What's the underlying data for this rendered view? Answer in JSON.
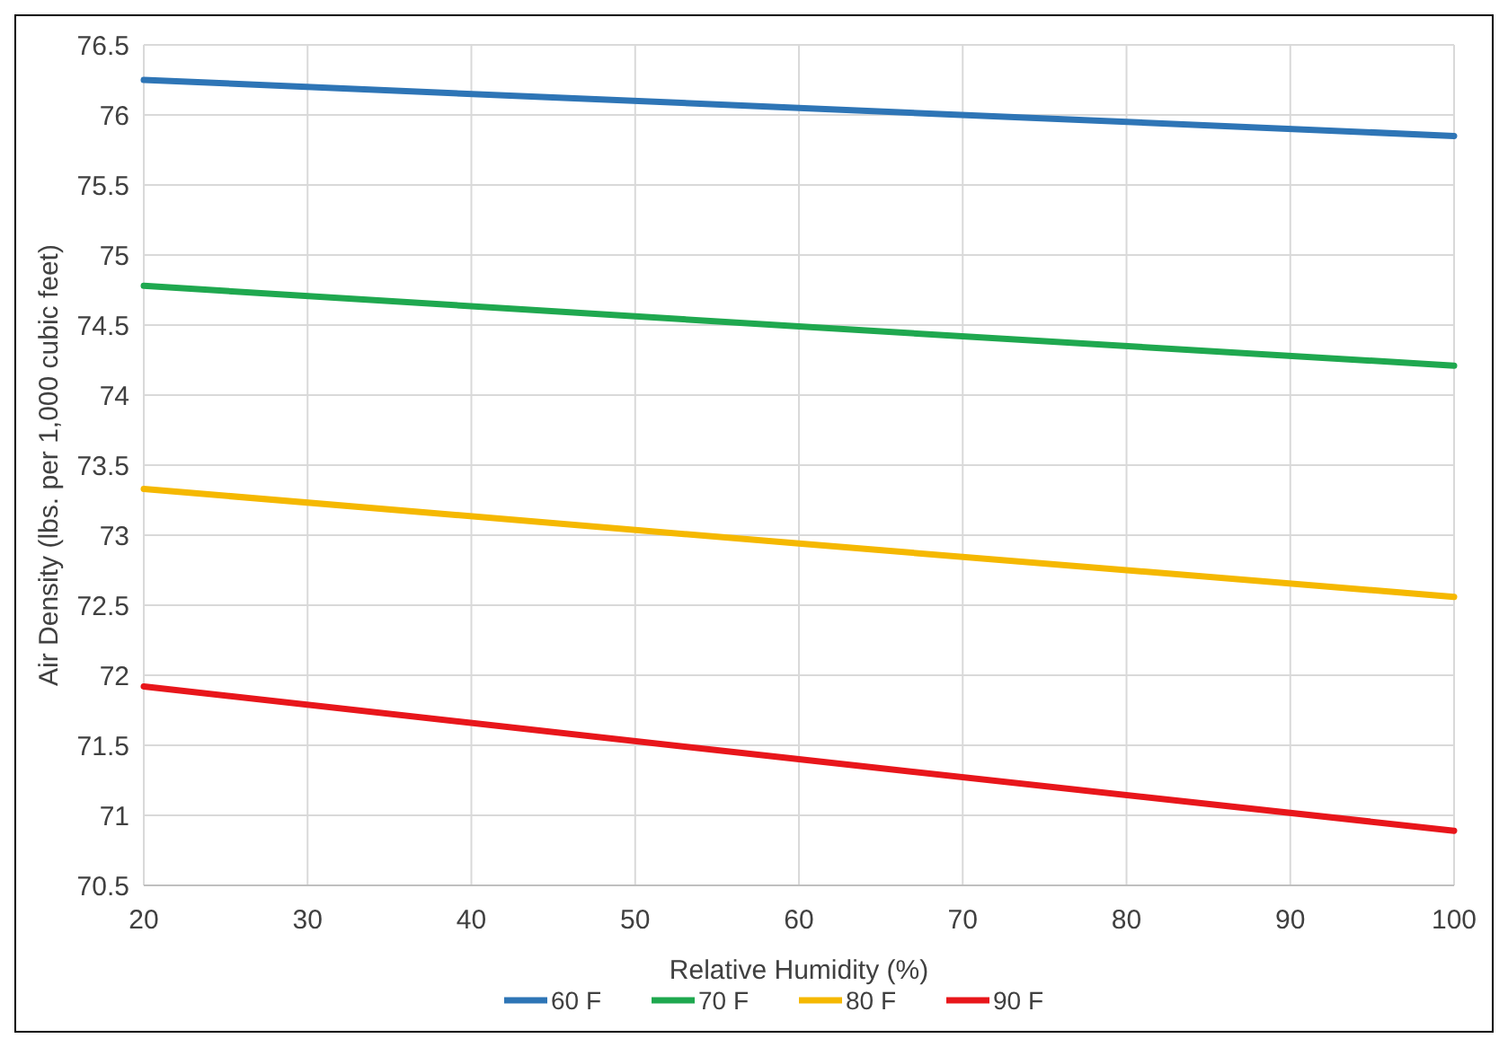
{
  "chart_data": {
    "type": "line",
    "xlabel": "Relative Humidity (%)",
    "ylabel": "Air Density (lbs. per 1,000 cubic feet)",
    "x": [
      20,
      60,
      100
    ],
    "series": [
      {
        "name": "60 F",
        "color": "#2e75b6",
        "values": [
          76.25,
          76.05,
          75.85
        ]
      },
      {
        "name": "70 F",
        "color": "#1fa84f",
        "values": [
          74.78,
          74.49,
          74.21
        ]
      },
      {
        "name": "80 F",
        "color": "#f5b800",
        "values": [
          73.33,
          72.94,
          72.56
        ]
      },
      {
        "name": "90 F",
        "color": "#e8161b",
        "values": [
          71.92,
          71.4,
          70.89
        ]
      }
    ],
    "xlim": [
      20,
      100
    ],
    "xticks": [
      20,
      30,
      40,
      50,
      60,
      70,
      80,
      90,
      100
    ],
    "ylim": [
      70.5,
      76.5
    ],
    "yticks": [
      70.5,
      71,
      71.5,
      72,
      72.5,
      73,
      73.5,
      74,
      74.5,
      75,
      75.5,
      76,
      76.5
    ],
    "grid": true,
    "legend": "bottom",
    "marker": "none",
    "line_style": "solid"
  }
}
